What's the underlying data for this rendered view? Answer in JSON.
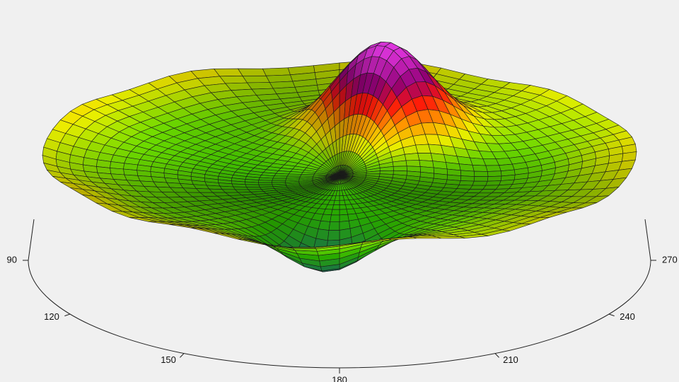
{
  "chart_data": {
    "type": "polar-surface",
    "angle_ticks": [
      90,
      120,
      150,
      180,
      210,
      240,
      270
    ]
  }
}
